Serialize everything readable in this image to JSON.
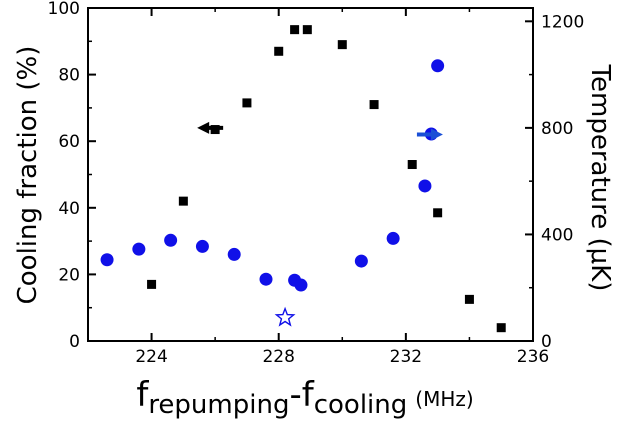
{
  "chart_data": {
    "type": "scatter",
    "x": {
      "label_prefix": "f",
      "label_sub1": "repumping",
      "label_dash": "-",
      "label_prefix2": "f",
      "label_sub2": "cooling",
      "label_unit": "(MHz)",
      "lim": [
        222,
        236
      ],
      "ticks": [
        224,
        228,
        232,
        236
      ]
    },
    "y_left": {
      "label": "Cooling fraction  (%)",
      "lim": [
        0,
        100
      ],
      "ticks": [
        0,
        20,
        40,
        60,
        80,
        100
      ]
    },
    "y_right": {
      "label": "Temperature (μK)",
      "lim": [
        0,
        1250
      ],
      "ticks": [
        0,
        400,
        800,
        1200
      ]
    },
    "series": [
      {
        "axis": "left",
        "marker": "square",
        "color": "#000000",
        "points": [
          [
            224.0,
            17
          ],
          [
            225.0,
            42
          ],
          [
            226.0,
            63.5
          ],
          [
            227.0,
            71.5
          ],
          [
            228.0,
            87
          ],
          [
            228.5,
            93.5
          ],
          [
            228.9,
            93.5
          ],
          [
            230.0,
            89
          ],
          [
            231.0,
            71
          ],
          [
            232.2,
            53
          ],
          [
            233.0,
            38.5
          ],
          [
            234.0,
            12.5
          ],
          [
            235.0,
            4
          ]
        ]
      },
      {
        "axis": "right",
        "marker": "circle",
        "color": "#1010e8",
        "points": [
          [
            222.6,
            305
          ],
          [
            223.6,
            345
          ],
          [
            224.6,
            378
          ],
          [
            225.6,
            355
          ],
          [
            226.6,
            325
          ],
          [
            227.6,
            232
          ],
          [
            228.5,
            228
          ],
          [
            228.7,
            210
          ],
          [
            230.6,
            300
          ],
          [
            231.6,
            385
          ],
          [
            232.6,
            582
          ],
          [
            232.8,
            777
          ],
          [
            233.0,
            1033
          ]
        ]
      },
      {
        "axis": "left",
        "marker": "star",
        "color": "#1010e8",
        "points": [
          [
            228.2,
            7
          ]
        ]
      }
    ],
    "annotations": [
      {
        "direction": "left",
        "at": [
          226.0,
          64
        ],
        "color": "#000000",
        "refers_to": "left"
      },
      {
        "direction": "right",
        "at": [
          232.6,
          62
        ],
        "color": "#1a4fd6",
        "refers_to": "right"
      }
    ],
    "grid": false,
    "legend": "none"
  }
}
